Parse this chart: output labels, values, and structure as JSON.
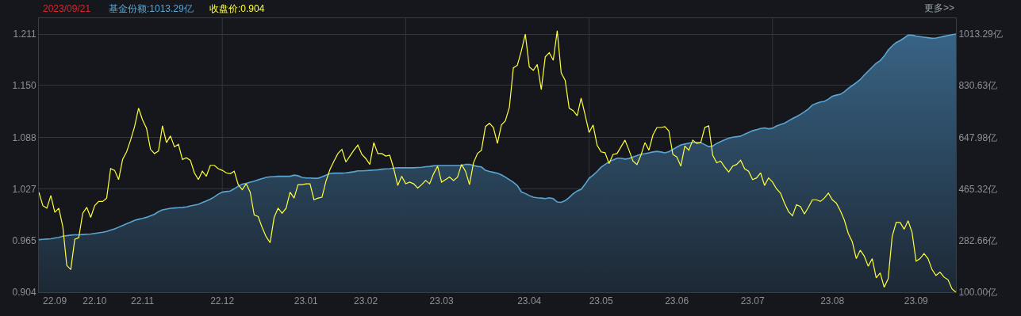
{
  "chart_data": {
    "type": "line",
    "annotations": [
      "2023/09/21",
      "基金份额:1013.29亿",
      "收盘价:0.904",
      "更多>>"
    ],
    "categories": [
      null,
      null,
      null,
      null,
      "22.09",
      null,
      null,
      null,
      null,
      null,
      null,
      null,
      null,
      null,
      "22.10",
      null,
      null,
      null,
      null,
      null,
      null,
      null,
      null,
      null,
      null,
      null,
      "22.11",
      null,
      null,
      null,
      null,
      null,
      null,
      null,
      null,
      null,
      null,
      null,
      null,
      null,
      null,
      null,
      null,
      null,
      null,
      null,
      "22.12",
      null,
      null,
      null,
      null,
      null,
      null,
      null,
      null,
      null,
      null,
      null,
      null,
      null,
      null,
      null,
      null,
      null,
      null,
      null,
      null,
      "23.01",
      null,
      null,
      null,
      null,
      null,
      null,
      null,
      null,
      null,
      null,
      null,
      null,
      null,
      null,
      "23.02",
      null,
      null,
      null,
      null,
      null,
      null,
      null,
      null,
      null,
      null,
      null,
      null,
      null,
      null,
      null,
      null,
      null,
      null,
      "23.03",
      null,
      null,
      null,
      null,
      null,
      null,
      null,
      null,
      null,
      null,
      null,
      null,
      null,
      null,
      null,
      null,
      null,
      null,
      null,
      null,
      null,
      "23.04",
      null,
      null,
      null,
      null,
      null,
      null,
      null,
      null,
      null,
      null,
      null,
      null,
      null,
      null,
      null,
      null,
      null,
      "23.05",
      null,
      null,
      null,
      null,
      null,
      null,
      null,
      null,
      null,
      null,
      null,
      null,
      null,
      null,
      null,
      null,
      null,
      null,
      "23.06",
      null,
      null,
      null,
      null,
      null,
      null,
      null,
      null,
      null,
      null,
      null,
      null,
      null,
      null,
      null,
      null,
      null,
      null,
      "23.07",
      null,
      null,
      null,
      null,
      null,
      null,
      null,
      null,
      null,
      null,
      null,
      null,
      null,
      null,
      null,
      null,
      null,
      null,
      null,
      "23.08",
      null,
      null,
      null,
      null,
      null,
      null,
      null,
      null,
      null,
      null,
      null,
      null,
      null,
      null,
      null,
      null,
      null,
      null,
      null,
      null,
      "23.09",
      null,
      null,
      null,
      null,
      null,
      null,
      null,
      null,
      null,
      null
    ],
    "ylim": [
      0.904,
      1.23
    ],
    "yticks": [
      0.904,
      0.965,
      1.027,
      1.088,
      {
        "value": 1.15,
        "label": "1.150"
      },
      1.211
    ],
    "y2lim": [
      100,
      1069
    ],
    "y2ticks": [
      {
        "value": 100,
        "label": "100.00亿"
      },
      {
        "value": 282.66,
        "label": "282.66亿"
      },
      {
        "value": 465.32,
        "label": "465.32亿"
      },
      {
        "value": 647.98,
        "label": "647.98亿"
      },
      {
        "value": 830.63,
        "label": "830.63亿"
      },
      {
        "value": 1013.29,
        "label": "1013.29亿"
      }
    ],
    "grid": true,
    "series": [
      {
        "type": "area",
        "axis": "y2",
        "color": "#5aa5d2",
        "values": [
          286,
          287,
          288,
          289,
          292,
          294,
          298,
          300,
          302,
          303,
          303,
          304,
          305,
          306,
          308,
          310,
          312,
          315,
          320,
          324,
          330,
          336,
          342,
          348,
          354,
          358,
          361,
          365,
          370,
          376,
          385,
          391,
          394,
          397,
          398,
          399,
          400,
          402,
          405,
          408,
          411,
          417,
          423,
          429,
          437,
          447,
          454,
          456,
          458,
          466,
          475,
          482,
          485,
          489,
          493,
          498,
          502,
          506,
          508,
          509,
          510,
          510,
          510,
          510,
          514,
          512,
          506,
          504,
          504,
          503,
          503,
          508,
          514,
          520,
          521,
          521,
          521,
          522,
          524,
          526,
          529,
          529,
          530,
          531,
          532,
          533,
          535,
          536,
          537,
          539,
          540,
          540,
          540,
          540,
          540,
          541,
          542,
          544,
          545,
          547,
          548,
          548,
          548,
          548,
          548,
          548,
          548,
          552,
          552,
          549,
          545,
          543,
          531,
          527,
          524,
          521,
          515,
          507,
          498,
          489,
          477,
          455,
          449,
          442,
          436,
          434,
          433,
          431,
          434,
          431,
          419,
          418,
          424,
          435,
          448,
          458,
          464,
          482,
          503,
          514,
          527,
          542,
          552,
          561,
          568,
          574,
          574,
          571,
          573,
          578,
          583,
          588,
          590,
          593,
          596,
          598,
          596,
          593,
          597,
          605,
          613,
          621,
          624,
          627,
          630,
          630,
          629,
          622,
          615,
          617,
          626,
          633,
          639,
          645,
          648,
          650,
          652,
          659,
          665,
          671,
          675,
          679,
          681,
          678,
          680,
          688,
          693,
          698,
          706,
          714,
          721,
          729,
          738,
          748,
          762,
          768,
          773,
          775,
          783,
          793,
          797,
          800,
          809,
          821,
          831,
          841,
          852,
          868,
          882,
          896,
          910,
          919,
          935,
          956,
          971,
          983,
          990,
          999,
          1009,
          1009,
          1006,
          1004,
          1002,
          1000,
          998,
          999,
          1002,
          1005,
          1008,
          1011,
          1013
        ]
      },
      {
        "color": "#ffff3c",
        "values": [
          1.023,
          1.007,
          1.004,
          1.019,
          0.999,
          1.004,
          0.982,
          0.936,
          0.931,
          0.967,
          0.969,
          0.998,
          1.005,
          0.993,
          1.007,
          1.012,
          1.012,
          1.016,
          1.051,
          1.049,
          1.038,
          1.062,
          1.071,
          1.085,
          1.101,
          1.123,
          1.109,
          1.099,
          1.074,
          1.069,
          1.072,
          1.102,
          1.082,
          1.09,
          1.077,
          1.08,
          1.062,
          1.064,
          1.061,
          1.046,
          1.038,
          1.048,
          1.042,
          1.055,
          1.055,
          1.051,
          1.049,
          1.046,
          1.045,
          1.048,
          1.032,
          1.026,
          1.033,
          1.023,
          0.996,
          0.994,
          0.981,
          0.97,
          0.963,
          0.993,
          1.004,
          0.998,
          1.004,
          1.023,
          1.016,
          1.032,
          1.032,
          1.033,
          1.033,
          1.014,
          1.016,
          1.017,
          1.036,
          1.05,
          1.06,
          1.069,
          1.074,
          1.059,
          1.066,
          1.073,
          1.079,
          1.068,
          1.063,
          1.056,
          1.082,
          1.069,
          1.069,
          1.066,
          1.067,
          1.051,
          1.031,
          1.042,
          1.033,
          1.035,
          1.033,
          1.028,
          1.032,
          1.037,
          1.033,
          1.045,
          1.054,
          1.035,
          1.038,
          1.041,
          1.037,
          1.041,
          1.056,
          1.048,
          1.032,
          1.058,
          1.069,
          1.073,
          1.101,
          1.105,
          1.1,
          1.081,
          1.103,
          1.108,
          1.124,
          1.171,
          1.174,
          1.191,
          1.211,
          1.172,
          1.168,
          1.175,
          1.145,
          1.184,
          1.189,
          1.18,
          1.215,
          1.165,
          1.156,
          1.123,
          1.12,
          1.114,
          1.135,
          1.115,
          1.094,
          1.103,
          1.079,
          1.071,
          1.07,
          1.057,
          1.068,
          1.069,
          1.077,
          1.085,
          1.073,
          1.06,
          1.056,
          1.067,
          1.082,
          1.073,
          1.091,
          1.1,
          1.1,
          1.101,
          1.096,
          1.068,
          1.065,
          1.054,
          1.078,
          1.073,
          1.085,
          1.081,
          1.082,
          1.1,
          1.102,
          1.067,
          1.058,
          1.06,
          1.053,
          1.047,
          1.054,
          1.056,
          1.061,
          1.051,
          1.048,
          1.038,
          1.04,
          1.046,
          1.031,
          1.04,
          1.035,
          1.027,
          1.022,
          1.01,
          1.0,
          0.995,
          1.008,
          1.006,
          0.997,
          1.005,
          1.014,
          1.014,
          1.012,
          1.016,
          1.022,
          1.014,
          1.01,
          1.001,
          0.99,
          0.974,
          0.964,
          0.944,
          0.954,
          0.947,
          0.935,
          0.944,
          0.921,
          0.927,
          0.91,
          0.92,
          0.97,
          0.987,
          0.987,
          0.979,
          0.989,
          0.975,
          0.941,
          0.944,
          0.95,
          0.944,
          0.931,
          0.924,
          0.928,
          0.922,
          0.919,
          0.908,
          0.904
        ]
      }
    ]
  }
}
